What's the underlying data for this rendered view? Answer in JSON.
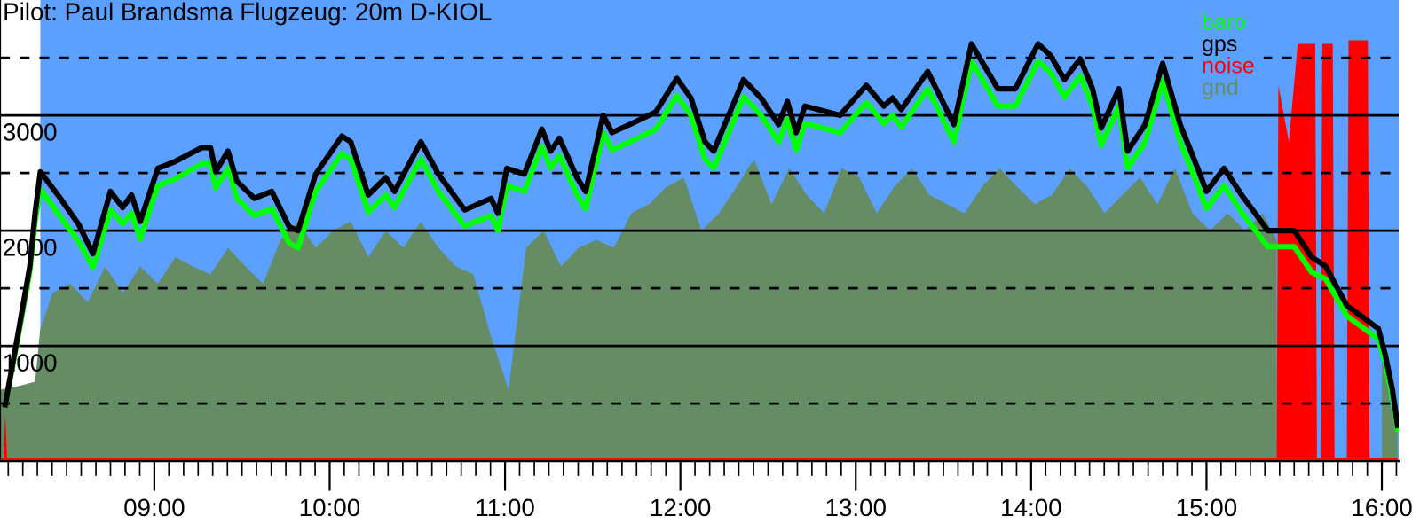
{
  "chart_data": {
    "type": "line",
    "title": "Pilot: Paul Brandsma Flugzeug: 20m D-KIOL",
    "xlim": [
      8.12,
      16.096
    ],
    "ylim": [
      0,
      4000
    ],
    "yticks": [
      1000,
      2000,
      3000
    ],
    "xticks": [
      {
        "value": 8.167,
        "label": null
      },
      {
        "value": 8.25,
        "label": null
      },
      {
        "value": 8.333,
        "label": null
      },
      {
        "value": 8.417,
        "label": null
      },
      {
        "value": 8.5,
        "label": null
      },
      {
        "value": 8.583,
        "label": null
      },
      {
        "value": 8.667,
        "label": null
      },
      {
        "value": 8.75,
        "label": null
      },
      {
        "value": 8.833,
        "label": null
      },
      {
        "value": 8.917,
        "label": null
      },
      {
        "value": 9,
        "label": "09:00"
      },
      {
        "value": 9.083,
        "label": null
      },
      {
        "value": 9.167,
        "label": null
      },
      {
        "value": 9.25,
        "label": null
      },
      {
        "value": 9.333,
        "label": null
      },
      {
        "value": 9.417,
        "label": null
      },
      {
        "value": 9.5,
        "label": null
      },
      {
        "value": 9.583,
        "label": null
      },
      {
        "value": 9.667,
        "label": null
      },
      {
        "value": 9.75,
        "label": null
      },
      {
        "value": 9.833,
        "label": null
      },
      {
        "value": 9.917,
        "label": null
      },
      {
        "value": 10,
        "label": "10:00"
      },
      {
        "value": 10.083,
        "label": null
      },
      {
        "value": 10.167,
        "label": null
      },
      {
        "value": 10.25,
        "label": null
      },
      {
        "value": 10.333,
        "label": null
      },
      {
        "value": 10.417,
        "label": null
      },
      {
        "value": 10.5,
        "label": null
      },
      {
        "value": 10.583,
        "label": null
      },
      {
        "value": 10.667,
        "label": null
      },
      {
        "value": 10.75,
        "label": null
      },
      {
        "value": 10.833,
        "label": null
      },
      {
        "value": 10.917,
        "label": null
      },
      {
        "value": 11,
        "label": "11:00"
      },
      {
        "value": 11.083,
        "label": null
      },
      {
        "value": 11.167,
        "label": null
      },
      {
        "value": 11.25,
        "label": null
      },
      {
        "value": 11.333,
        "label": null
      },
      {
        "value": 11.417,
        "label": null
      },
      {
        "value": 11.5,
        "label": null
      },
      {
        "value": 11.583,
        "label": null
      },
      {
        "value": 11.667,
        "label": null
      },
      {
        "value": 11.75,
        "label": null
      },
      {
        "value": 11.833,
        "label": null
      },
      {
        "value": 11.917,
        "label": null
      },
      {
        "value": 12,
        "label": "12:00"
      },
      {
        "value": 12.083,
        "label": null
      },
      {
        "value": 12.167,
        "label": null
      },
      {
        "value": 12.25,
        "label": null
      },
      {
        "value": 12.333,
        "label": null
      },
      {
        "value": 12.417,
        "label": null
      },
      {
        "value": 12.5,
        "label": null
      },
      {
        "value": 12.583,
        "label": null
      },
      {
        "value": 12.667,
        "label": null
      },
      {
        "value": 12.75,
        "label": null
      },
      {
        "value": 12.833,
        "label": null
      },
      {
        "value": 12.917,
        "label": null
      },
      {
        "value": 13,
        "label": "13:00"
      },
      {
        "value": 13.083,
        "label": null
      },
      {
        "value": 13.167,
        "label": null
      },
      {
        "value": 13.25,
        "label": null
      },
      {
        "value": 13.333,
        "label": null
      },
      {
        "value": 13.417,
        "label": null
      },
      {
        "value": 13.5,
        "label": null
      },
      {
        "value": 13.583,
        "label": null
      },
      {
        "value": 13.667,
        "label": null
      },
      {
        "value": 13.75,
        "label": null
      },
      {
        "value": 13.833,
        "label": null
      },
      {
        "value": 13.917,
        "label": null
      },
      {
        "value": 14,
        "label": "14:00"
      },
      {
        "value": 14.083,
        "label": null
      },
      {
        "value": 14.167,
        "label": null
      },
      {
        "value": 14.25,
        "label": null
      },
      {
        "value": 14.333,
        "label": null
      },
      {
        "value": 14.417,
        "label": null
      },
      {
        "value": 14.5,
        "label": null
      },
      {
        "value": 14.583,
        "label": null
      },
      {
        "value": 14.667,
        "label": null
      },
      {
        "value": 14.75,
        "label": null
      },
      {
        "value": 14.833,
        "label": null
      },
      {
        "value": 14.917,
        "label": null
      },
      {
        "value": 15,
        "label": "15:00"
      },
      {
        "value": 15.083,
        "label": null
      },
      {
        "value": 15.167,
        "label": null
      },
      {
        "value": 15.25,
        "label": null
      },
      {
        "value": 15.333,
        "label": null
      },
      {
        "value": 15.417,
        "label": null
      },
      {
        "value": 15.5,
        "label": null
      },
      {
        "value": 15.583,
        "label": null
      },
      {
        "value": 15.667,
        "label": null
      },
      {
        "value": 15.75,
        "label": null
      },
      {
        "value": 15.833,
        "label": null
      },
      {
        "value": 15.917,
        "label": null
      },
      {
        "value": 16,
        "label": "16:00"
      },
      {
        "value": 16.083,
        "label": null
      }
    ],
    "grid": "y",
    "legend": "top right",
    "line_style": "solid",
    "bands": [
      {
        "axis": "x",
        "from": 8.35,
        "to": 16.096,
        "color": "#5ba0ff"
      }
    ],
    "ref_lines": [
      {
        "axis": "y",
        "value": 500,
        "line_style": "dashed",
        "color": "#000000"
      },
      {
        "axis": "y",
        "value": 1500,
        "line_style": "dashed",
        "color": "#000000"
      },
      {
        "axis": "y",
        "value": 2500,
        "line_style": "dashed",
        "color": "#000000"
      },
      {
        "axis": "y",
        "value": 3500,
        "line_style": "dashed",
        "color": "#000000"
      }
    ],
    "series": [
      {
        "name": "baro",
        "color": "#00ff00",
        "x": [
          8.15,
          8.22,
          8.29,
          8.32,
          8.35,
          8.45,
          8.57,
          8.65,
          8.75,
          8.82,
          8.87,
          8.92,
          9.02,
          9.12,
          9.27,
          9.32,
          9.35,
          9.42,
          9.47,
          9.57,
          9.67,
          9.77,
          9.82,
          9.92,
          10.07,
          10.12,
          10.22,
          10.32,
          10.37,
          10.52,
          10.62,
          10.77,
          10.92,
          10.96,
          11.01,
          11.11,
          11.21,
          11.26,
          11.31,
          11.41,
          11.46,
          11.56,
          11.61,
          11.71,
          11.86,
          11.98,
          12.06,
          12.14,
          12.19,
          12.36,
          12.46,
          12.56,
          12.61,
          12.66,
          12.71,
          12.91,
          13.06,
          13.16,
          13.21,
          13.26,
          13.41,
          13.56,
          13.66,
          13.81,
          13.91,
          14.04,
          14.11,
          14.19,
          14.28,
          14.35,
          14.4,
          14.5,
          14.55,
          14.65,
          14.75,
          14.85,
          14.95,
          15.0,
          15.1,
          15.2,
          15.35,
          15.5,
          15.6,
          15.68,
          15.8,
          15.98,
          16.02,
          16.06,
          16.09
        ],
        "values": [
          490,
          1050,
          1650,
          2080,
          2360,
          2150,
          1900,
          1680,
          2180,
          2060,
          2150,
          1930,
          2390,
          2450,
          2580,
          2580,
          2370,
          2540,
          2280,
          2130,
          2190,
          1890,
          1850,
          2340,
          2670,
          2620,
          2160,
          2310,
          2200,
          2620,
          2340,
          2040,
          2130,
          2000,
          2390,
          2340,
          2730,
          2540,
          2650,
          2310,
          2190,
          2850,
          2700,
          2770,
          2880,
          3170,
          3000,
          2620,
          2540,
          3160,
          3000,
          2770,
          2970,
          2700,
          2930,
          2850,
          3110,
          2930,
          3000,
          2900,
          3230,
          2770,
          3470,
          3080,
          3080,
          3470,
          3370,
          3160,
          3340,
          3080,
          2740,
          3080,
          2540,
          2770,
          3300,
          2770,
          2390,
          2190,
          2390,
          2160,
          1860,
          1860,
          1640,
          1580,
          1260,
          1060,
          850,
          560,
          280
        ]
      },
      {
        "name": "gps",
        "color": "#000000",
        "x": [
          8.15,
          8.22,
          8.29,
          8.32,
          8.35,
          8.45,
          8.57,
          8.65,
          8.75,
          8.82,
          8.87,
          8.92,
          9.02,
          9.12,
          9.27,
          9.32,
          9.35,
          9.42,
          9.47,
          9.57,
          9.67,
          9.77,
          9.82,
          9.92,
          10.07,
          10.12,
          10.22,
          10.32,
          10.37,
          10.52,
          10.62,
          10.77,
          10.92,
          10.96,
          11.01,
          11.11,
          11.21,
          11.26,
          11.31,
          11.41,
          11.46,
          11.56,
          11.61,
          11.71,
          11.86,
          11.98,
          12.06,
          12.14,
          12.19,
          12.36,
          12.46,
          12.56,
          12.61,
          12.66,
          12.71,
          12.91,
          13.06,
          13.16,
          13.21,
          13.26,
          13.41,
          13.56,
          13.66,
          13.81,
          13.91,
          14.04,
          14.11,
          14.19,
          14.28,
          14.35,
          14.4,
          14.5,
          14.55,
          14.65,
          14.75,
          14.85,
          14.95,
          15.0,
          15.1,
          15.2,
          15.35,
          15.5,
          15.6,
          15.68,
          15.8,
          15.98,
          16.02,
          16.06,
          16.09
        ],
        "values": [
          490,
          1080,
          1690,
          2150,
          2510,
          2310,
          2050,
          1800,
          2340,
          2200,
          2310,
          2080,
          2540,
          2600,
          2720,
          2720,
          2510,
          2690,
          2430,
          2280,
          2340,
          2030,
          2000,
          2490,
          2820,
          2770,
          2310,
          2460,
          2340,
          2770,
          2490,
          2180,
          2280,
          2150,
          2540,
          2490,
          2880,
          2690,
          2800,
          2460,
          2340,
          3000,
          2850,
          2920,
          3030,
          3320,
          3150,
          2770,
          2690,
          3310,
          3150,
          2920,
          3120,
          2850,
          3080,
          3000,
          3260,
          3080,
          3150,
          3050,
          3380,
          2920,
          3620,
          3230,
          3230,
          3620,
          3520,
          3310,
          3490,
          3230,
          2890,
          3230,
          2690,
          2920,
          3450,
          2920,
          2540,
          2340,
          2540,
          2310,
          2000,
          2000,
          1770,
          1690,
          1350,
          1150,
          920,
          620,
          310
        ]
      },
      {
        "name": "noise",
        "type": "area",
        "color": "#ff0000",
        "x": [
          8.12,
          8.14,
          8.15,
          8.16,
          15.4,
          15.41,
          15.47,
          15.52,
          15.62,
          15.63,
          15.65,
          15.66,
          15.72,
          15.73,
          15.8,
          15.81,
          15.92,
          15.93,
          16.09
        ],
        "values": [
          30,
          30,
          410,
          30,
          30,
          3260,
          2770,
          3620,
          3620,
          30,
          30,
          3620,
          3620,
          30,
          30,
          3650,
          3650,
          30,
          30
        ]
      },
      {
        "name": "gnd",
        "type": "area",
        "color": "#668c66",
        "x": [
          8.12,
          8.22,
          8.32,
          8.35,
          8.42,
          8.52,
          8.62,
          8.72,
          8.82,
          8.92,
          9.02,
          9.12,
          9.22,
          9.32,
          9.42,
          9.52,
          9.62,
          9.72,
          9.82,
          9.92,
          10.02,
          10.12,
          10.22,
          10.32,
          10.42,
          10.52,
          10.62,
          10.72,
          10.82,
          10.92,
          11.02,
          11.12,
          11.22,
          11.32,
          11.42,
          11.52,
          11.62,
          11.72,
          11.82,
          11.92,
          12.02,
          12.12,
          12.22,
          12.32,
          12.42,
          12.52,
          12.62,
          12.72,
          12.82,
          12.92,
          13.02,
          13.12,
          13.22,
          13.32,
          13.42,
          13.52,
          13.62,
          13.72,
          13.82,
          13.92,
          14.02,
          14.12,
          14.22,
          14.32,
          14.42,
          14.52,
          14.62,
          14.72,
          14.82,
          14.92,
          15.02,
          15.12,
          15.22,
          15.32,
          15.4,
          15.5,
          15.6,
          15.7,
          15.8,
          15.9,
          16.0,
          16.05,
          16.09
        ],
        "values": [
          620,
          650,
          690,
          1150,
          1460,
          1540,
          1380,
          1690,
          1460,
          1690,
          1540,
          1770,
          1690,
          1620,
          1850,
          1690,
          1540,
          1920,
          2080,
          1850,
          2000,
          2080,
          1770,
          2000,
          1850,
          2080,
          1850,
          1690,
          1620,
          1080,
          620,
          1850,
          2000,
          1690,
          1850,
          1920,
          1850,
          2150,
          2230,
          2380,
          2460,
          2000,
          2150,
          2380,
          2620,
          2230,
          2540,
          2310,
          2150,
          2540,
          2460,
          2150,
          2380,
          2540,
          2310,
          2230,
          2150,
          2380,
          2540,
          2380,
          2230,
          2310,
          2540,
          2380,
          2150,
          2310,
          2460,
          2230,
          2540,
          2150,
          2000,
          2150,
          2000,
          2150,
          1920,
          null,
          null,
          null,
          null,
          null,
          1000,
          460,
          460
        ]
      }
    ]
  }
}
